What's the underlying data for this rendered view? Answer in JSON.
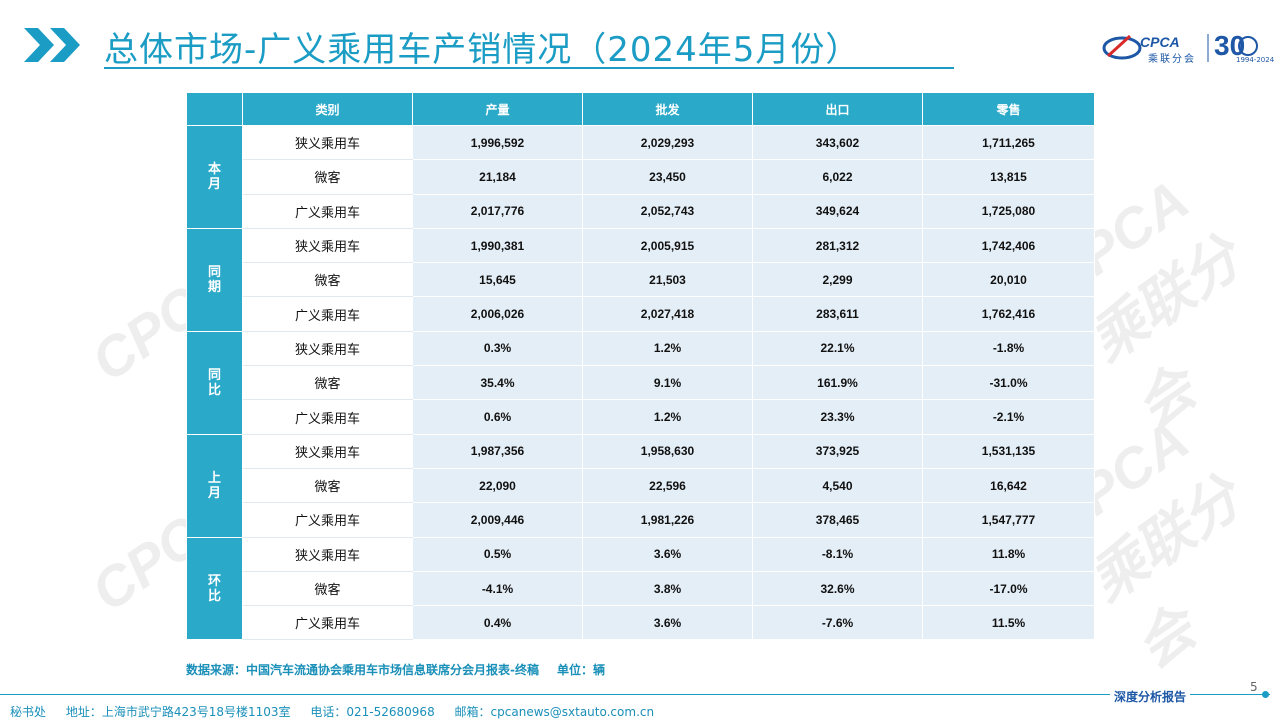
{
  "header": {
    "title": "总体市场-广义乘用车产销情况（2024年5月份）",
    "logo_text": "CPCA",
    "logo_sub": "乘联分会",
    "logo_anniv": "30",
    "logo_years": "1994-2024",
    "accent_color": "#1a9cc4"
  },
  "watermark": "CPCA 乘联分会",
  "table": {
    "headers": [
      "类别",
      "产量",
      "批发",
      "出口",
      "零售"
    ],
    "groups": [
      {
        "label": "本月",
        "rows": [
          {
            "category": "狭义乘用车",
            "values": [
              "1,996,592",
              "2,029,293",
              "343,602",
              "1,711,265"
            ]
          },
          {
            "category": "微客",
            "values": [
              "21,184",
              "23,450",
              "6,022",
              "13,815"
            ]
          },
          {
            "category": "广义乘用车",
            "values": [
              "2,017,776",
              "2,052,743",
              "349,624",
              "1,725,080"
            ]
          }
        ]
      },
      {
        "label": "同期",
        "rows": [
          {
            "category": "狭义乘用车",
            "values": [
              "1,990,381",
              "2,005,915",
              "281,312",
              "1,742,406"
            ]
          },
          {
            "category": "微客",
            "values": [
              "15,645",
              "21,503",
              "2,299",
              "20,010"
            ]
          },
          {
            "category": "广义乘用车",
            "values": [
              "2,006,026",
              "2,027,418",
              "283,611",
              "1,762,416"
            ]
          }
        ]
      },
      {
        "label": "同比",
        "rows": [
          {
            "category": "狭义乘用车",
            "values": [
              "0.3%",
              "1.2%",
              "22.1%",
              "-1.8%"
            ]
          },
          {
            "category": "微客",
            "values": [
              "35.4%",
              "9.1%",
              "161.9%",
              "-31.0%"
            ]
          },
          {
            "category": "广义乘用车",
            "values": [
              "0.6%",
              "1.2%",
              "23.3%",
              "-2.1%"
            ]
          }
        ]
      },
      {
        "label": "上月",
        "rows": [
          {
            "category": "狭义乘用车",
            "values": [
              "1,987,356",
              "1,958,630",
              "373,925",
              "1,531,135"
            ]
          },
          {
            "category": "微客",
            "values": [
              "22,090",
              "22,596",
              "4,540",
              "16,642"
            ]
          },
          {
            "category": "广义乘用车",
            "values": [
              "2,009,446",
              "1,981,226",
              "378,465",
              "1,547,777"
            ]
          }
        ]
      },
      {
        "label": "环比",
        "rows": [
          {
            "category": "狭义乘用车",
            "values": [
              "0.5%",
              "3.6%",
              "-8.1%",
              "11.8%"
            ]
          },
          {
            "category": "微客",
            "values": [
              "-4.1%",
              "3.8%",
              "32.6%",
              "-17.0%"
            ]
          },
          {
            "category": "广义乘用车",
            "values": [
              "0.4%",
              "3.6%",
              "-7.6%",
              "11.5%"
            ]
          }
        ]
      }
    ]
  },
  "source": {
    "text": "数据来源：中国汽车流通协会乘用车市场信息联席分会月报表-终稿",
    "unit": "单位：辆"
  },
  "footer": {
    "office": "秘书处",
    "address": "地址：上海市武宁路423号18号楼1103室",
    "phone": "电话：021-52680968",
    "email": "邮箱：cpcanews@sxtauto.com.cn",
    "tagline": "深度分析报告",
    "page": "5"
  }
}
